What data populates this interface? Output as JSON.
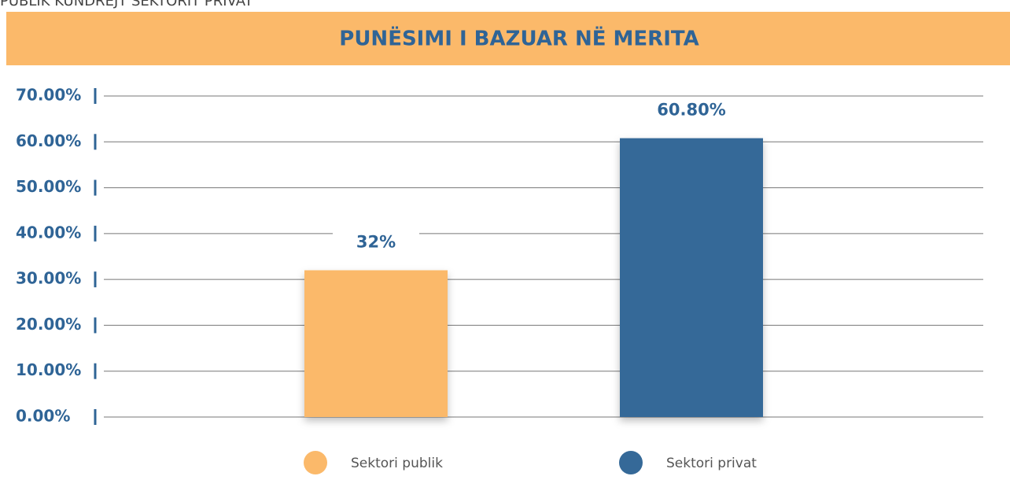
{
  "chart_data": {
    "type": "bar",
    "subtitle": "PUBLIK KUNDREJT SEKTORIT PRIVAT",
    "title": "PUNËSIMI I BAZUAR NË MERITA",
    "categories": [
      "Sektori publik",
      "Sektori privat"
    ],
    "values": [
      32,
      60.8
    ],
    "value_labels": [
      "32%",
      "60.80%"
    ],
    "colors": [
      "#fbb96a",
      "#356998"
    ],
    "ylim": [
      0,
      70
    ],
    "yticks": [
      {
        "value": 0,
        "label": "0.00%"
      },
      {
        "value": 10,
        "label": "10.00%"
      },
      {
        "value": 20,
        "label": "20.00%"
      },
      {
        "value": 30,
        "label": "30.00%"
      },
      {
        "value": 40,
        "label": "40.00%"
      },
      {
        "value": 50,
        "label": "50.00%"
      },
      {
        "value": 60,
        "label": "60.00%"
      },
      {
        "value": 70,
        "label": "70.00%"
      }
    ],
    "grid": true,
    "legend": "bottom"
  }
}
